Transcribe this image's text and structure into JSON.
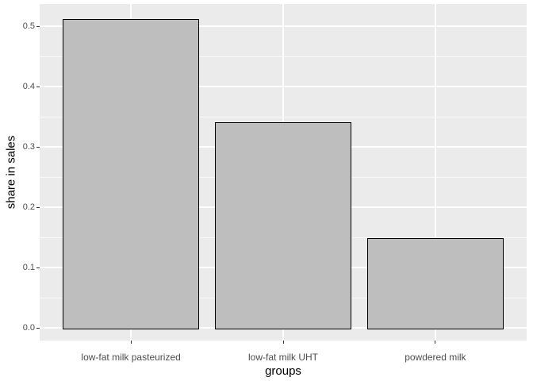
{
  "chart_data": {
    "type": "bar",
    "title": "",
    "xlabel": "groups",
    "ylabel": "share in sales",
    "categories": [
      "low-fat milk pasteurized",
      "low-fat milk UHT",
      "powdered milk"
    ],
    "values": [
      0.511,
      0.34,
      0.147
    ],
    "y_ticks": [
      0.0,
      0.1,
      0.2,
      0.3,
      0.4,
      0.5
    ],
    "y_tick_labels": [
      "0.0",
      "0.1",
      "0.2",
      "0.3",
      "0.4",
      "0.5"
    ],
    "y_minor_ticks": [
      0.05,
      0.15,
      0.25,
      0.35,
      0.45
    ],
    "panel_range": [
      -0.0204,
      0.5375
    ],
    "bar_rel_width": 0.9,
    "grid": true,
    "legend": "none",
    "colors": {
      "figure_bg": "#FFFFFF",
      "panel_bg": "#EBEBEB",
      "bar_fill": "#BEBEBE",
      "bar_border": "#000000",
      "grid_major": "#FFFFFF",
      "grid_minor": "#FFFFFF",
      "tick_mark": "#333333",
      "tick_label": "#4D4D4D",
      "axis_title": "#000000"
    }
  }
}
